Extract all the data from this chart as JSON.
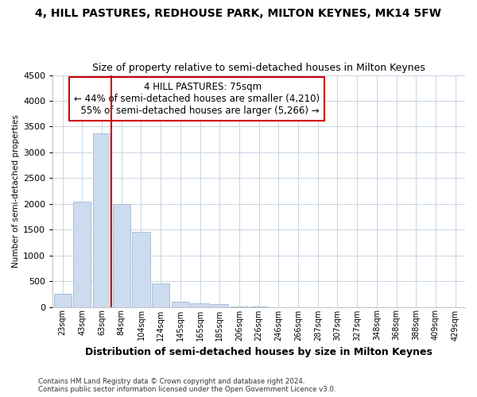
{
  "title1": "4, HILL PASTURES, REDHOUSE PARK, MILTON KEYNES, MK14 5FW",
  "title2": "Size of property relative to semi-detached houses in Milton Keynes",
  "xlabel": "Distribution of semi-detached houses by size in Milton Keynes",
  "ylabel": "Number of semi-detached properties",
  "footnote1": "Contains HM Land Registry data © Crown copyright and database right 2024.",
  "footnote2": "Contains public sector information licensed under the Open Government Licence v3.0.",
  "categories": [
    "23sqm",
    "43sqm",
    "63sqm",
    "84sqm",
    "104sqm",
    "124sqm",
    "145sqm",
    "165sqm",
    "185sqm",
    "206sqm",
    "226sqm",
    "246sqm",
    "266sqm",
    "287sqm",
    "307sqm",
    "327sqm",
    "348sqm",
    "368sqm",
    "388sqm",
    "409sqm",
    "429sqm"
  ],
  "values": [
    250,
    2050,
    3375,
    2000,
    1450,
    460,
    100,
    75,
    50,
    5,
    2,
    0,
    0,
    0,
    0,
    0,
    0,
    0,
    0,
    0,
    0
  ],
  "bar_color": "#ccdcee",
  "bar_edge_color": "#aac0d8",
  "grid_color": "#c8d4e4",
  "property_size_label": "4 HILL PASTURES: 75sqm",
  "pct_smaller": 44,
  "pct_larger": 55,
  "n_smaller": 4210,
  "n_larger": 5266,
  "vline_color": "#cc0000",
  "ylim": [
    0,
    4500
  ],
  "yticks": [
    0,
    500,
    1000,
    1500,
    2000,
    2500,
    3000,
    3500,
    4000,
    4500
  ],
  "vline_x": 2.5,
  "background_color": "#ffffff"
}
